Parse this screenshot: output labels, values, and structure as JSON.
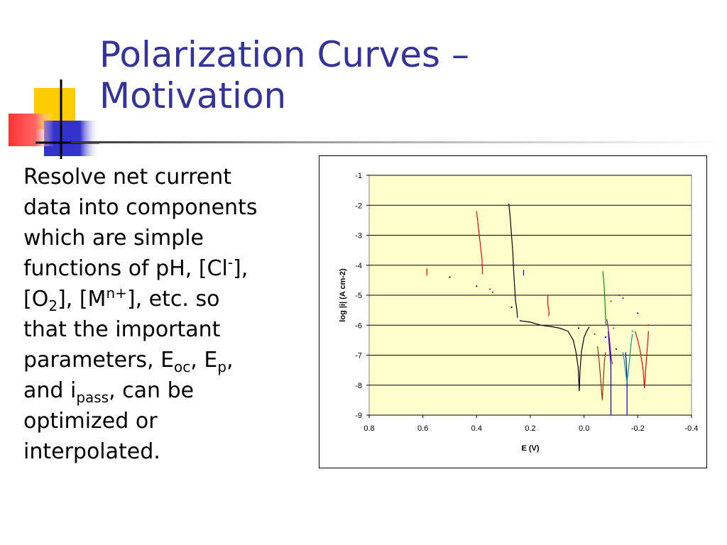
{
  "slide": {
    "title_line1": "Polarization Curves –",
    "title_line2": "Motivation",
    "body_lines": [
      [
        {
          "t": "Resolve net current"
        }
      ],
      [
        {
          "t": "data into components"
        }
      ],
      [
        {
          "t": "which are simple"
        }
      ],
      [
        {
          "t": "functions of pH, [Cl"
        },
        {
          "t": "-",
          "s": "sup"
        },
        {
          "t": "],"
        }
      ],
      [
        {
          "t": "[O"
        },
        {
          "t": "2",
          "s": "sub"
        },
        {
          "t": "], [M"
        },
        {
          "t": "n+",
          "s": "sup"
        },
        {
          "t": "], etc. so"
        }
      ],
      [
        {
          "t": "that the important"
        }
      ],
      [
        {
          "t": "parameters, E"
        },
        {
          "t": "oc",
          "s": "sub"
        },
        {
          "t": ", E"
        },
        {
          "t": "p",
          "s": "sub"
        },
        {
          "t": ","
        }
      ],
      [
        {
          "t": "and i"
        },
        {
          "t": "pass",
          "s": "sub"
        },
        {
          "t": ", can be"
        }
      ],
      [
        {
          "t": "optimized or"
        }
      ],
      [
        {
          "t": "interpolated."
        }
      ]
    ]
  },
  "colors": {
    "title": "#333399",
    "plot_background": "#FFFFCC",
    "gridline": "#000000",
    "deco_yellow": "#FFCC00",
    "deco_blue": "#3333CC",
    "deco_red": "#FF3333"
  },
  "chart_data": {
    "type": "line",
    "xlabel": "E (V)",
    "ylabel": "log |i| (A cm-2)",
    "xlim": [
      0.8,
      -0.4
    ],
    "x_reversed": true,
    "ylim": [
      -9,
      -1
    ],
    "x_ticks": [
      0.8,
      0.6,
      0.4,
      0.2,
      0.0,
      -0.2,
      -0.4
    ],
    "x_tick_labels": [
      "0.8",
      "0.6",
      "0.4",
      "0.2",
      "0.0",
      "-0.2",
      "-0.4"
    ],
    "y_ticks": [
      -1,
      -2,
      -3,
      -4,
      -5,
      -6,
      -7,
      -8,
      -9
    ],
    "y_tick_labels": [
      "-1",
      "-2",
      "-3",
      "-4",
      "-5",
      "-6",
      "-7",
      "-8",
      "-9"
    ],
    "grid": "horizontal",
    "legend": "none",
    "series": [
      {
        "color": "#000000",
        "points": [
          [
            0.28,
            -1.95
          ],
          [
            0.275,
            -2.4
          ],
          [
            0.27,
            -3.0
          ],
          [
            0.265,
            -3.6
          ],
          [
            0.262,
            -4.2
          ],
          [
            0.258,
            -4.8
          ],
          [
            0.255,
            -5.2
          ],
          [
            0.25,
            -5.5
          ],
          [
            0.248,
            -5.75
          ]
        ]
      },
      {
        "color": "#000000",
        "points": [
          [
            0.24,
            -5.85
          ],
          [
            0.2,
            -5.9
          ],
          [
            0.16,
            -6.0
          ],
          [
            0.12,
            -6.05
          ],
          [
            0.09,
            -6.1
          ],
          [
            0.06,
            -6.2
          ],
          [
            0.04,
            -6.5
          ],
          [
            0.03,
            -6.9
          ],
          [
            0.022,
            -7.4
          ],
          [
            0.02,
            -7.8
          ],
          [
            0.018,
            -8.2
          ],
          [
            0.015,
            -7.5
          ],
          [
            0.01,
            -6.9
          ],
          [
            0.0,
            -6.4
          ],
          [
            -0.01,
            -6.2
          ],
          [
            -0.02,
            -6.05
          ]
        ]
      },
      {
        "color": "#FF0000",
        "points": [
          [
            0.4,
            -2.2
          ],
          [
            0.395,
            -2.6
          ],
          [
            0.39,
            -3.0
          ],
          [
            0.385,
            -3.4
          ],
          [
            0.38,
            -3.8
          ],
          [
            0.378,
            -4.3
          ]
        ]
      },
      {
        "color": "#FF0000",
        "points": [
          [
            0.585,
            -4.1
          ],
          [
            0.585,
            -4.35
          ]
        ]
      },
      {
        "color": "#FF0000",
        "points": [
          [
            0.135,
            -5.0
          ],
          [
            0.135,
            -5.3
          ],
          [
            0.13,
            -5.6
          ],
          [
            0.132,
            -5.7
          ]
        ]
      },
      {
        "color": "#FF0000",
        "points": [
          [
            -0.19,
            -6.2
          ],
          [
            -0.2,
            -6.5
          ],
          [
            -0.21,
            -6.9
          ],
          [
            -0.22,
            -7.5
          ],
          [
            -0.225,
            -8.1
          ],
          [
            -0.23,
            -7.4
          ],
          [
            -0.235,
            -6.8
          ],
          [
            -0.24,
            -6.2
          ]
        ]
      },
      {
        "color": "#993300",
        "points": [
          [
            -0.05,
            -6.7
          ],
          [
            -0.055,
            -7.1
          ],
          [
            -0.06,
            -7.6
          ],
          [
            -0.065,
            -8.2
          ],
          [
            -0.068,
            -8.5
          ],
          [
            -0.072,
            -7.8
          ],
          [
            -0.076,
            -7.2
          ],
          [
            -0.08,
            -6.9
          ]
        ]
      },
      {
        "color": "#0000CC",
        "points": [
          [
            -0.09,
            -6.2
          ],
          [
            -0.095,
            -6.8
          ],
          [
            -0.1,
            -7.4
          ],
          [
            -0.1,
            -8.2
          ],
          [
            -0.1,
            -9.0
          ]
        ]
      },
      {
        "color": "#0000CC",
        "points": [
          [
            -0.155,
            -6.9
          ],
          [
            -0.158,
            -7.4
          ],
          [
            -0.16,
            -8.0
          ],
          [
            -0.16,
            -9.0
          ]
        ]
      },
      {
        "color": "#0000CC",
        "points": [
          [
            0.225,
            -4.15
          ],
          [
            0.225,
            -4.35
          ]
        ]
      },
      {
        "color": "#009900",
        "points": [
          [
            -0.07,
            -4.2
          ],
          [
            -0.075,
            -4.7
          ],
          [
            -0.078,
            -5.3
          ],
          [
            -0.08,
            -5.7
          ],
          [
            -0.082,
            -6.0
          ]
        ]
      },
      {
        "color": "#990099",
        "points": [
          [
            -0.085,
            -5.8
          ],
          [
            -0.09,
            -6.1
          ],
          [
            -0.095,
            -6.5
          ],
          [
            -0.1,
            -7.0
          ],
          [
            -0.105,
            -7.3
          ]
        ]
      },
      {
        "color": "#009999",
        "points": [
          [
            -0.145,
            -6.9
          ],
          [
            -0.15,
            -7.2
          ],
          [
            -0.155,
            -7.6
          ],
          [
            -0.16,
            -7.9
          ],
          [
            -0.165,
            -7.5
          ],
          [
            -0.17,
            -7.1
          ],
          [
            -0.175,
            -6.6
          ],
          [
            -0.18,
            -6.3
          ]
        ]
      }
    ],
    "scatter_points": [
      {
        "color": "#000000",
        "x": 0.5,
        "y": -4.4
      },
      {
        "color": "#000000",
        "x": 0.4,
        "y": -4.7
      },
      {
        "color": "#000000",
        "x": 0.27,
        "y": -5.4
      },
      {
        "color": "#000000",
        "x": 0.02,
        "y": -6.1
      },
      {
        "color": "#FF0000",
        "x": 0.35,
        "y": -4.8
      },
      {
        "color": "#FF0000",
        "x": 0.34,
        "y": -4.9
      },
      {
        "color": "#009900",
        "x": -0.1,
        "y": -5.2
      },
      {
        "color": "#990099",
        "x": -0.13,
        "y": -5.0
      },
      {
        "color": "#990099",
        "x": -0.145,
        "y": -5.1
      },
      {
        "color": "#0000CC",
        "x": -0.08,
        "y": -6.4
      },
      {
        "color": "#0000CC",
        "x": -0.12,
        "y": -6.8
      },
      {
        "color": "#0000CC",
        "x": -0.2,
        "y": -5.6
      },
      {
        "color": "#009999",
        "x": -0.11,
        "y": -6.1
      },
      {
        "color": "#009999",
        "x": -0.18,
        "y": -6.2
      },
      {
        "color": "#993300",
        "x": -0.04,
        "y": -6.3
      },
      {
        "color": "#FF0000",
        "x": -0.24,
        "y": -6.0
      }
    ]
  }
}
